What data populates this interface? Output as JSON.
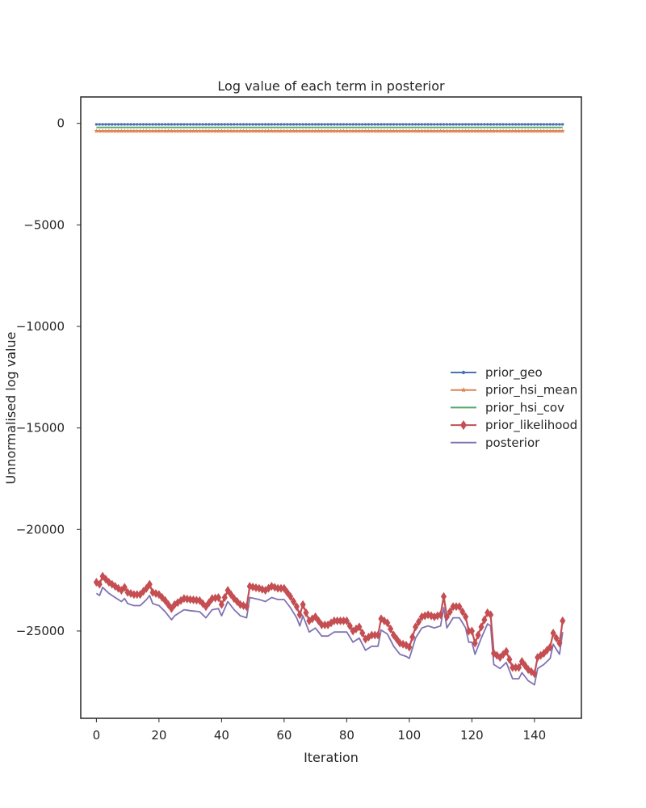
{
  "chart_data": {
    "type": "line",
    "title": "Log value of each term in posterior",
    "xlabel": "Iteration",
    "ylabel": "Unnormalised log value",
    "xlim": [
      -5,
      155
    ],
    "ylim": [
      -29300,
      1300
    ],
    "xticks": [
      0,
      20,
      40,
      60,
      80,
      100,
      120,
      140
    ],
    "yticks": [
      0,
      -5000,
      -10000,
      -15000,
      -20000,
      -25000
    ],
    "ytick_labels": [
      "0",
      "−5000",
      "−10000",
      "−15000",
      "−20000",
      "−25000"
    ],
    "grid": false,
    "legend_position": "center-right",
    "series": [
      {
        "name": "prior_geo",
        "color": "#4c72b0",
        "marker": "point",
        "constant": -50
      },
      {
        "name": "prior_hsi_mean",
        "color": "#dd8452",
        "marker": "star",
        "constant": -380
      },
      {
        "name": "prior_hsi_cov",
        "color": "#55a868",
        "marker": "none",
        "constant": -200
      },
      {
        "name": "prior_likelihood",
        "color": "#c44e52",
        "marker": "diamond",
        "keypoints": [
          [
            0,
            -22600
          ],
          [
            1,
            -22700
          ],
          [
            2,
            -22300
          ],
          [
            4,
            -22600
          ],
          [
            6,
            -22800
          ],
          [
            8,
            -23000
          ],
          [
            9,
            -22850
          ],
          [
            10,
            -23100
          ],
          [
            12,
            -23200
          ],
          [
            14,
            -23200
          ],
          [
            16,
            -22900
          ],
          [
            17,
            -22700
          ],
          [
            18,
            -23100
          ],
          [
            20,
            -23200
          ],
          [
            22,
            -23500
          ],
          [
            24,
            -23900
          ],
          [
            25,
            -23700
          ],
          [
            28,
            -23400
          ],
          [
            30,
            -23450
          ],
          [
            33,
            -23500
          ],
          [
            35,
            -23800
          ],
          [
            37,
            -23400
          ],
          [
            39,
            -23350
          ],
          [
            40,
            -23700
          ],
          [
            42,
            -23000
          ],
          [
            44,
            -23400
          ],
          [
            46,
            -23700
          ],
          [
            48,
            -23800
          ],
          [
            49,
            -22800
          ],
          [
            52,
            -22900
          ],
          [
            54,
            -23000
          ],
          [
            56,
            -22800
          ],
          [
            58,
            -22900
          ],
          [
            60,
            -22900
          ],
          [
            62,
            -23300
          ],
          [
            64,
            -23800
          ],
          [
            65,
            -24200
          ],
          [
            66,
            -23700
          ],
          [
            68,
            -24500
          ],
          [
            70,
            -24300
          ],
          [
            72,
            -24700
          ],
          [
            74,
            -24700
          ],
          [
            76,
            -24500
          ],
          [
            78,
            -24500
          ],
          [
            80,
            -24500
          ],
          [
            82,
            -25000
          ],
          [
            84,
            -24800
          ],
          [
            86,
            -25400
          ],
          [
            88,
            -25200
          ],
          [
            90,
            -25200
          ],
          [
            91,
            -24400
          ],
          [
            93,
            -24600
          ],
          [
            95,
            -25200
          ],
          [
            97,
            -25600
          ],
          [
            99,
            -25700
          ],
          [
            100,
            -25800
          ],
          [
            102,
            -24800
          ],
          [
            104,
            -24300
          ],
          [
            106,
            -24200
          ],
          [
            108,
            -24300
          ],
          [
            110,
            -24200
          ],
          [
            111,
            -23300
          ],
          [
            112,
            -24300
          ],
          [
            114,
            -23800
          ],
          [
            116,
            -23800
          ],
          [
            118,
            -24300
          ],
          [
            119,
            -25000
          ],
          [
            120,
            -25000
          ],
          [
            121,
            -25600
          ],
          [
            123,
            -24800
          ],
          [
            125,
            -24100
          ],
          [
            126,
            -24200
          ],
          [
            127,
            -26100
          ],
          [
            129,
            -26300
          ],
          [
            131,
            -26000
          ],
          [
            133,
            -26800
          ],
          [
            135,
            -26800
          ],
          [
            136,
            -26500
          ],
          [
            138,
            -26900
          ],
          [
            140,
            -27100
          ],
          [
            141,
            -26300
          ],
          [
            143,
            -26100
          ],
          [
            145,
            -25800
          ],
          [
            146,
            -25100
          ],
          [
            148,
            -25600
          ],
          [
            149,
            -24500
          ]
        ]
      },
      {
        "name": "posterior",
        "color": "#8172b3",
        "marker": "none",
        "offset_from": "prior_likelihood",
        "offset": -550
      }
    ]
  }
}
